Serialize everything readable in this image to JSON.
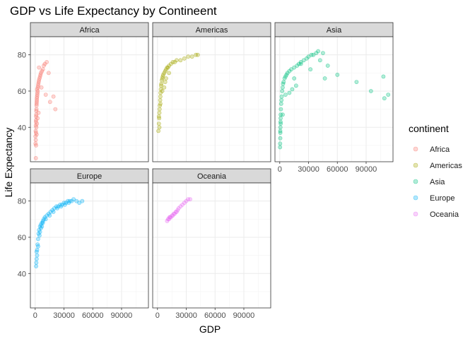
{
  "chart_data": {
    "type": "scatter",
    "title": "GDP vs Life Expectancy by Contineent",
    "xlabel": "GDP",
    "ylabel": "Life Expectancy",
    "xlim": [
      -5000,
      118000
    ],
    "ylim": [
      21,
      90
    ],
    "x_ticks": [
      0,
      30000,
      60000,
      90000
    ],
    "x_tick_labels": [
      "0",
      "30000",
      "60000",
      "90000"
    ],
    "y_ticks": [
      40,
      60,
      80
    ],
    "y_tick_labels": [
      "40",
      "60",
      "80"
    ],
    "grid": true,
    "legend": {
      "title": "continent",
      "position": "right"
    },
    "point_opacity": 0.3,
    "series": [
      {
        "name": "Africa",
        "color": "#F8766D",
        "x": [
          300,
          500,
          700,
          800,
          900,
          1000,
          1100,
          1200,
          1300,
          1400,
          1500,
          1600,
          1700,
          1800,
          2000,
          2200,
          2400,
          2600,
          2800,
          3000,
          3300,
          3600,
          4000,
          4500,
          5000,
          5500,
          6000,
          7000,
          8000,
          9000,
          10000,
          12000,
          14000,
          3500,
          2500,
          1800,
          1200,
          800,
          600,
          400,
          2000,
          4000,
          6500,
          11000,
          15500,
          19000,
          21000,
          700,
          900,
          1500
        ],
        "y": [
          35,
          38,
          41,
          43,
          44,
          46,
          47,
          49,
          50,
          52,
          53,
          54,
          55,
          56,
          57,
          58,
          59,
          60,
          62,
          63,
          64,
          65,
          66,
          67,
          68,
          69,
          70,
          71,
          72,
          74,
          75,
          76,
          70,
          48,
          45,
          42,
          40,
          37,
          33,
          31,
          61,
          73,
          62,
          58,
          54,
          57,
          50,
          23,
          30,
          36
        ]
      },
      {
        "name": "Americas",
        "color": "#A3A500",
        "x": [
          1000,
          1500,
          1800,
          2000,
          2200,
          2500,
          2800,
          3000,
          3200,
          3500,
          3800,
          4000,
          4500,
          5000,
          5500,
          6000,
          7000,
          8000,
          9000,
          10000,
          11000,
          12000,
          14000,
          16000,
          18000,
          20000,
          24000,
          28000,
          32000,
          36000,
          40000,
          42000,
          2000,
          1500,
          3000,
          5000,
          8000,
          12000,
          7000,
          9000
        ],
        "y": [
          38,
          42,
          45,
          48,
          50,
          52,
          55,
          57,
          59,
          61,
          63,
          64,
          66,
          67,
          68,
          69,
          70,
          71,
          72,
          73,
          73,
          74,
          75,
          76,
          76,
          77,
          77,
          78,
          79,
          79,
          80,
          80,
          40,
          46,
          53,
          60,
          65,
          70,
          62,
          67
        ]
      },
      {
        "name": "Asia",
        "color": "#00BF7D",
        "x": [
          300,
          400,
          500,
          600,
          700,
          800,
          900,
          1000,
          1200,
          1500,
          1800,
          2000,
          2500,
          3000,
          3500,
          4000,
          5000,
          6000,
          7000,
          8000,
          10000,
          12000,
          15000,
          18000,
          20000,
          22000,
          25000,
          28000,
          30000,
          33000,
          35000,
          38000,
          40000,
          42000,
          45000,
          50000,
          60000,
          80000,
          95000,
          108000,
          109000,
          113000,
          47000,
          32000,
          22000,
          15000,
          10000,
          6000,
          3000,
          1000,
          500,
          13000,
          17000
        ],
        "y": [
          29,
          31,
          34,
          37,
          40,
          43,
          45,
          47,
          50,
          53,
          55,
          57,
          60,
          62,
          64,
          65,
          67,
          68,
          69,
          70,
          71,
          72,
          73,
          74,
          75,
          76,
          77,
          78,
          79,
          80,
          80,
          81,
          82,
          77,
          81,
          74,
          69,
          65,
          60,
          68,
          56,
          58,
          67,
          72,
          75,
          67,
          59,
          58,
          47,
          42,
          38,
          61,
          63
        ]
      },
      {
        "name": "Europe",
        "color": "#00B0F6",
        "x": [
          1000,
          1500,
          2000,
          2500,
          3000,
          3500,
          4000,
          5000,
          6000,
          7000,
          8000,
          9000,
          10000,
          12000,
          14000,
          16000,
          18000,
          20000,
          22000,
          24000,
          26000,
          28000,
          30000,
          32000,
          34000,
          36000,
          38000,
          40000,
          43000,
          46000,
          49000,
          2000,
          3000,
          1500,
          4500,
          6000,
          8000,
          11000,
          15000,
          19000,
          23000,
          27000,
          31000,
          35000,
          5000,
          7000,
          1200
        ],
        "y": [
          44,
          48,
          53,
          56,
          59,
          62,
          64,
          66,
          67,
          68,
          69,
          70,
          71,
          72,
          73,
          74,
          75,
          76,
          77,
          77,
          78,
          78,
          79,
          79,
          80,
          80,
          80,
          81,
          80,
          79,
          80,
          50,
          55,
          52,
          61,
          65,
          68,
          70,
          72,
          74,
          76,
          77,
          78,
          79,
          63,
          66,
          46
        ]
      },
      {
        "name": "Oceania",
        "color": "#E76BF3",
        "x": [
          10000,
          11000,
          12000,
          12500,
          13000,
          14000,
          15000,
          16000,
          17000,
          18000,
          19000,
          20000,
          21000,
          22000,
          24000,
          26000,
          28000,
          30000,
          32000,
          34000
        ],
        "y": [
          69,
          70,
          70,
          71,
          71,
          71,
          72,
          72,
          73,
          73,
          74,
          74,
          75,
          76,
          77,
          78,
          79,
          80,
          81,
          81
        ]
      }
    ]
  }
}
